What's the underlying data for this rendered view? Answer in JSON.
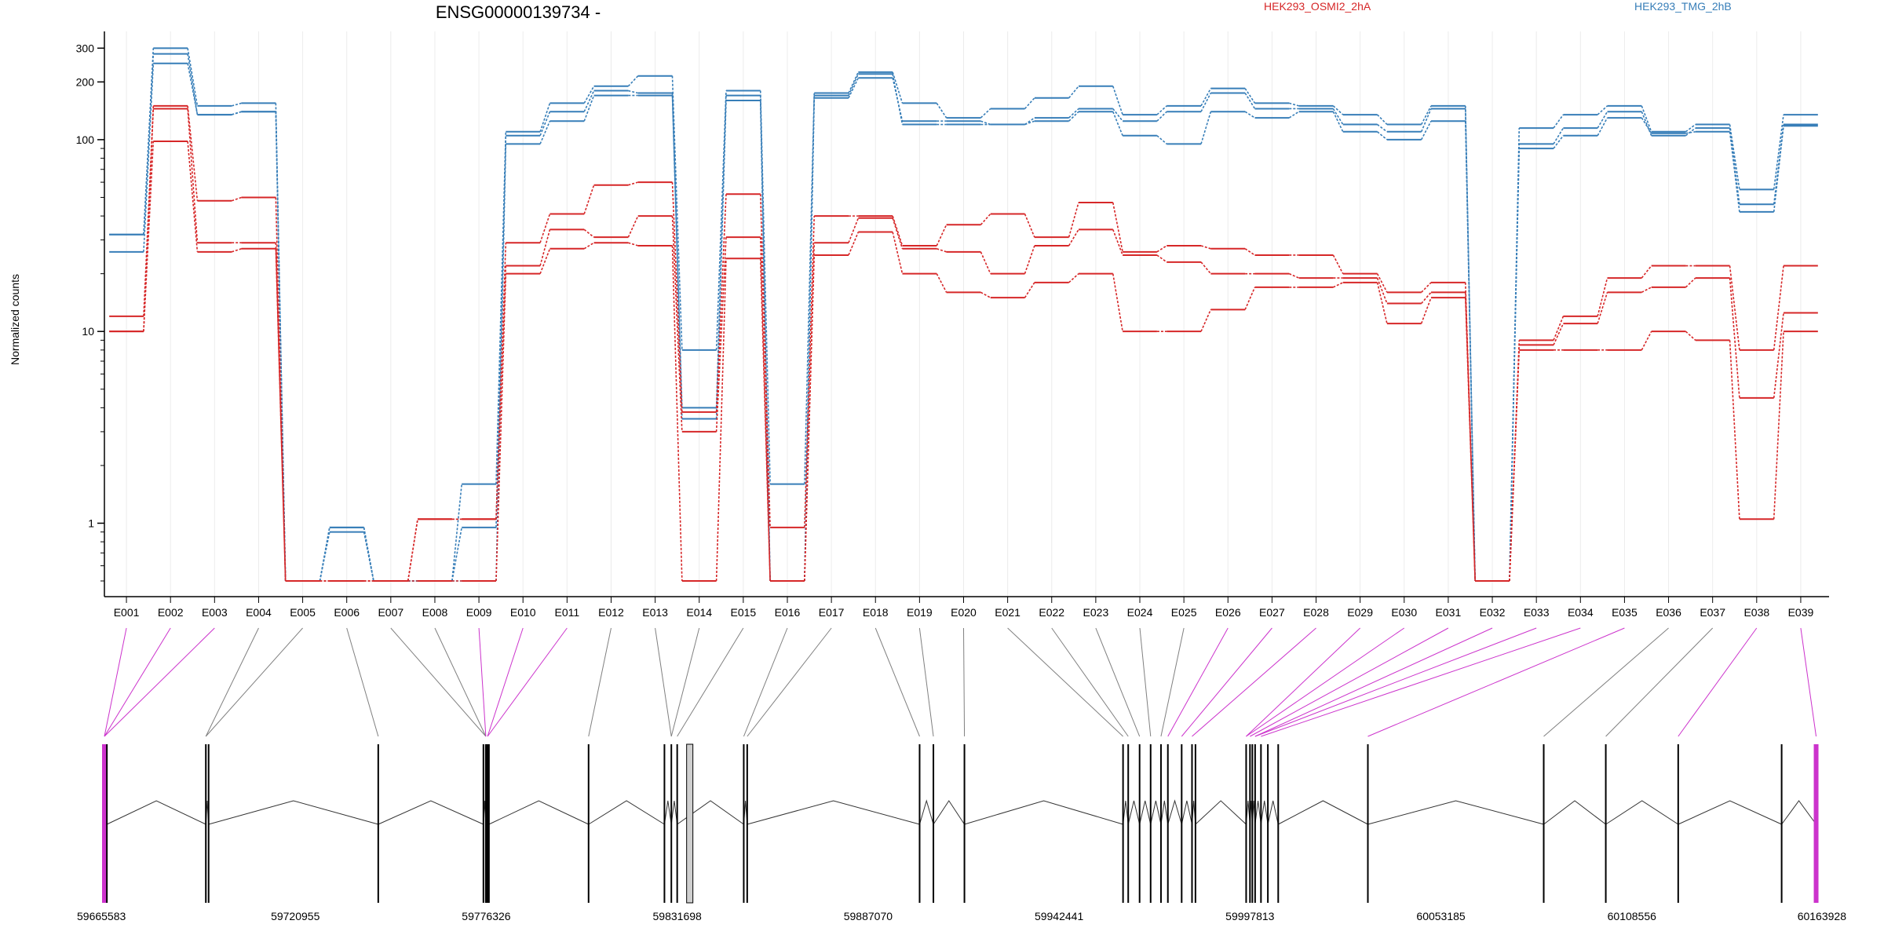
{
  "chart_data": {
    "type": "line",
    "title": "ENSG00000139734 -",
    "ylabel": "Normalized counts",
    "y_scale": "log",
    "ylim": [
      0.5,
      350
    ],
    "y_ticks": [
      1,
      10,
      100,
      200,
      300
    ],
    "y_tick_labels": [
      "1",
      "10",
      "100",
      "200",
      "300"
    ],
    "categories": [
      "E001",
      "E002",
      "E003",
      "E004",
      "E005",
      "E006",
      "E007",
      "E008",
      "E009",
      "E010",
      "E011",
      "E012",
      "E013",
      "E014",
      "E015",
      "E016",
      "E017",
      "E018",
      "E019",
      "E020",
      "E021",
      "E022",
      "E023",
      "E024",
      "E025",
      "E026",
      "E027",
      "E028",
      "E029",
      "E030",
      "E031",
      "E032",
      "E033",
      "E034",
      "E035",
      "E036",
      "E037",
      "E038",
      "E039"
    ],
    "legend": [
      {
        "label": "HEK293_OSMI2_2hA",
        "color": "#d62728"
      },
      {
        "label": "HEK293_TMG_2hB",
        "color": "#377eb8"
      }
    ],
    "series": [
      {
        "group": "HEK293_TMG_2hB",
        "color": "#377eb8",
        "values": [
          32,
          300,
          150,
          155,
          0.5,
          0.95,
          0.5,
          0.5,
          1.6,
          110,
          155,
          190,
          215,
          8,
          180,
          1.6,
          175,
          225,
          155,
          130,
          145,
          165,
          190,
          135,
          150,
          185,
          155,
          150,
          135,
          120,
          150,
          0.5,
          115,
          135,
          150,
          110,
          120,
          55,
          135
        ]
      },
      {
        "group": "HEK293_TMG_2hB",
        "color": "#377eb8",
        "values": [
          32,
          280,
          135,
          140,
          0.5,
          0.95,
          0.5,
          0.5,
          0.95,
          105,
          140,
          180,
          175,
          4,
          170,
          0.5,
          170,
          220,
          120,
          120,
          120,
          130,
          145,
          125,
          140,
          175,
          145,
          145,
          120,
          110,
          145,
          0.5,
          95,
          115,
          140,
          105,
          115,
          46,
          120
        ]
      },
      {
        "group": "HEK293_TMG_2hB",
        "color": "#377eb8",
        "values": [
          26,
          250,
          135,
          140,
          0.5,
          0.9,
          0.5,
          0.5,
          0.5,
          95,
          125,
          170,
          170,
          3.5,
          160,
          0.5,
          165,
          210,
          125,
          125,
          120,
          125,
          140,
          105,
          95,
          140,
          130,
          140,
          110,
          100,
          125,
          0.5,
          90,
          105,
          130,
          108,
          110,
          42,
          118
        ]
      },
      {
        "group": "HEK293_OSMI2_2hA",
        "color": "#d62728",
        "values": [
          12,
          150,
          48,
          50,
          0.5,
          0.5,
          0.5,
          1.05,
          1.05,
          29,
          41,
          58,
          60,
          3.8,
          52,
          0.95,
          40,
          40,
          28,
          36,
          41,
          31,
          47,
          26,
          28,
          27,
          25,
          25,
          20,
          16,
          18,
          0.5,
          9,
          12,
          19,
          22,
          22,
          8,
          22
        ]
      },
      {
        "group": "HEK293_OSMI2_2hA",
        "color": "#d62728",
        "values": [
          10,
          145,
          29,
          29,
          0.5,
          0.5,
          0.5,
          1.05,
          1.05,
          22,
          34,
          31,
          40,
          3,
          31,
          0.5,
          29,
          39,
          27,
          26,
          20,
          28,
          34,
          25,
          23,
          20,
          20,
          19,
          19,
          14,
          16,
          0.5,
          8.5,
          11,
          16,
          17,
          19,
          4.5,
          12.5
        ]
      },
      {
        "group": "HEK293_OSMI2_2hA",
        "color": "#d62728",
        "values": [
          10,
          98,
          26,
          27,
          0.5,
          0.5,
          0.5,
          0.5,
          0.5,
          20,
          27,
          29,
          28,
          0.5,
          24,
          0.5,
          25,
          33,
          20,
          16,
          15,
          18,
          20,
          10,
          10,
          13,
          17,
          17,
          18,
          11,
          15,
          0.5,
          8,
          8,
          8,
          10,
          9,
          1.05,
          10
        ]
      }
    ],
    "genomic_axis": {
      "start": 59665583,
      "end": 60163928,
      "tick_labels": [
        "59665583",
        "59720955",
        "59776326",
        "59831698",
        "59887070",
        "59942441",
        "59997813",
        "60053185",
        "60108556",
        "60163928"
      ]
    },
    "exon_positions": [
      59665583,
      59666300,
      59695000,
      59695800,
      59745000,
      59775500,
      59776200,
      59776900,
      59776326,
      59776700,
      59777100,
      59806000,
      59828000,
      59830000,
      59831698,
      59851000,
      59852000,
      59902000,
      59906000,
      59915000,
      59961000,
      59962500,
      59965800,
      59969000,
      59972000,
      59974000,
      59978000,
      59981000,
      59982000,
      59996700,
      59997813,
      59998500,
      59999300,
      60001000,
      60003000,
      60006000,
      60032000,
      60083000,
      60101000,
      60122000,
      60152000,
      60162000
    ],
    "exon_highlight_color": "#cc33cc",
    "connector_colors": [
      "#cc33cc",
      "#808080"
    ]
  }
}
